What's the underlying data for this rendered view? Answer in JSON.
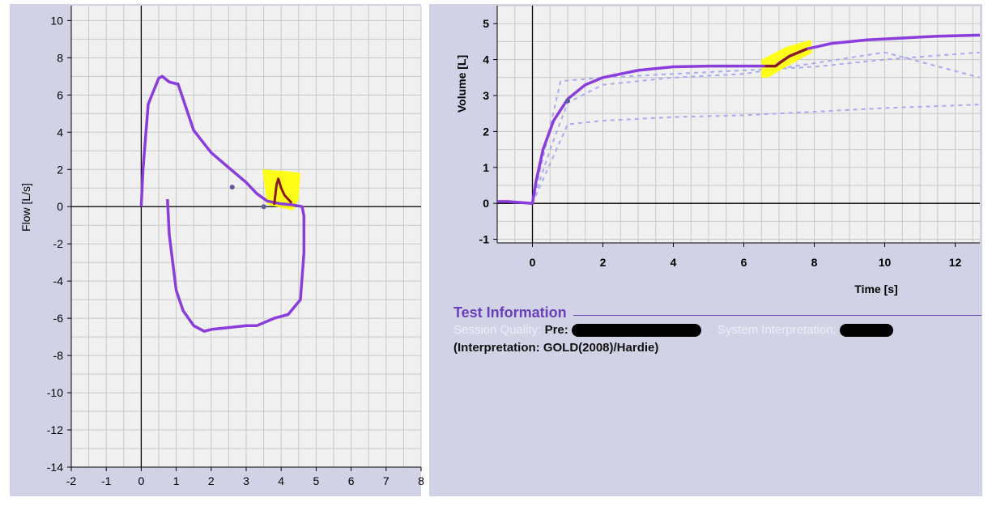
{
  "colors": {
    "panel_bg": "#d2d2e6",
    "plot_bg": "#f0f0f0",
    "grid": "#c8c8c8",
    "curve": "#8a3ddb",
    "highlight": "#ffff00",
    "highlight_curve": "#8b1a1a",
    "ref_dash": "#aaaaee",
    "info_title": "#6a3fb8"
  },
  "flow_volume": {
    "ylabel": "Flow [L/s]",
    "xlabel": "",
    "xlim": [
      -2,
      8
    ],
    "ylim": [
      -14,
      10.8
    ],
    "xticks": [
      -2,
      -1,
      0,
      1,
      2,
      3,
      4,
      5,
      6,
      7,
      8
    ],
    "yticks": [
      10,
      8,
      6,
      4,
      2,
      0,
      -2,
      -4,
      -6,
      -8,
      -10,
      -12,
      -14
    ]
  },
  "volume_time": {
    "ylabel": "Volume [L]",
    "xlabel": "Time [s]",
    "xlim": [
      -1,
      12.7
    ],
    "ylim": [
      -1.1,
      5.5
    ],
    "xticks": [
      0,
      2,
      4,
      6,
      8,
      10,
      12
    ],
    "yticks": [
      5,
      4,
      3,
      2,
      1,
      0,
      -1
    ]
  },
  "chart_data": [
    {
      "type": "line",
      "name": "flow-volume",
      "xlabel": "",
      "ylabel": "Flow [L/s]",
      "xlim": [
        -2,
        8
      ],
      "ylim": [
        -14,
        10.8
      ],
      "grid": true,
      "series": [
        {
          "x": [
            0,
            0.05,
            0.2,
            0.5,
            0.6,
            0.8,
            1.0,
            1.05,
            1.3,
            1.5,
            1.75,
            2.0,
            2.5,
            3.0,
            3.3,
            3.6,
            4.0,
            4.3,
            4.6,
            4.65,
            4.65,
            4.55,
            4.2,
            3.8,
            3.3,
            3.0,
            2.5,
            2.0,
            1.8,
            1.5,
            1.2,
            1.0,
            0.9,
            0.8,
            0.75
          ],
          "y": [
            0,
            2.0,
            5.5,
            6.9,
            7.0,
            6.7,
            6.6,
            6.6,
            5.2,
            4.1,
            3.5,
            2.9,
            2.1,
            1.3,
            0.7,
            0.3,
            0.15,
            0.1,
            0.0,
            -0.5,
            -2.5,
            -5.0,
            -5.8,
            -6.0,
            -6.4,
            -6.4,
            -6.5,
            -6.6,
            -6.7,
            -6.4,
            -5.6,
            -4.5,
            -3.0,
            -1.5,
            0.4
          ]
        },
        {
          "x": [
            3.8,
            3.87,
            3.92,
            4.0,
            4.1,
            4.3
          ],
          "y": [
            0.1,
            1.2,
            1.5,
            1.0,
            0.6,
            0.2
          ]
        }
      ],
      "points": [
        {
          "x": 2.6,
          "y": 1.05
        },
        {
          "x": 3.5,
          "y": 0.0
        }
      ]
    },
    {
      "type": "line",
      "name": "volume-time",
      "xlabel": "Time [s]",
      "ylabel": "Volume [L]",
      "xlim": [
        -1,
        12.7
      ],
      "ylim": [
        -1.1,
        5.5
      ],
      "grid": true,
      "series": [
        {
          "x": [
            -1,
            -0.7,
            -0.3,
            0,
            0.1,
            0.3,
            0.6,
            1.0,
            1.5,
            2.0,
            2.5,
            3.0,
            4.0,
            5.0,
            6.0,
            6.9,
            7.0,
            7.3,
            7.8,
            8.5,
            9.5,
            10.5,
            11.5,
            12.7
          ],
          "y": [
            0.05,
            0.05,
            0.02,
            0,
            0.6,
            1.5,
            2.3,
            2.9,
            3.3,
            3.5,
            3.6,
            3.7,
            3.8,
            3.82,
            3.82,
            3.82,
            3.9,
            4.1,
            4.3,
            4.45,
            4.55,
            4.6,
            4.65,
            4.68
          ]
        },
        {
          "x": [
            6.6,
            6.9,
            7.3,
            7.8
          ],
          "y": [
            3.82,
            3.82,
            4.1,
            4.3
          ]
        },
        {
          "x": [
            0,
            0.8,
            2.0,
            4.0,
            6.0,
            8.0,
            10.0,
            12.7
          ],
          "y": [
            0,
            3.4,
            3.5,
            3.6,
            3.7,
            3.8,
            4.0,
            4.2
          ]
        },
        {
          "x": [
            0,
            1.0,
            2.0,
            4.0,
            6.0,
            8.0,
            10.0,
            12.7
          ],
          "y": [
            0,
            2.2,
            2.3,
            2.4,
            2.45,
            2.55,
            2.65,
            2.75
          ]
        },
        {
          "x": [
            0,
            0.5,
            1.0,
            2.0,
            4.0,
            6.0,
            8.0,
            10.0,
            12.7
          ],
          "y": [
            0,
            1.5,
            2.8,
            3.3,
            3.5,
            3.6,
            3.9,
            4.2,
            3.5
          ]
        }
      ],
      "points": [
        {
          "x": 1.0,
          "y": 2.85
        }
      ]
    }
  ],
  "info": {
    "title": "Test Information",
    "session_quality_label": "Session Quality:",
    "pre_label": "Pre:",
    "system_interpretation_label": "System Interpretation:",
    "interpretation": "(Interpretation: GOLD(2008)/Hardie)"
  }
}
